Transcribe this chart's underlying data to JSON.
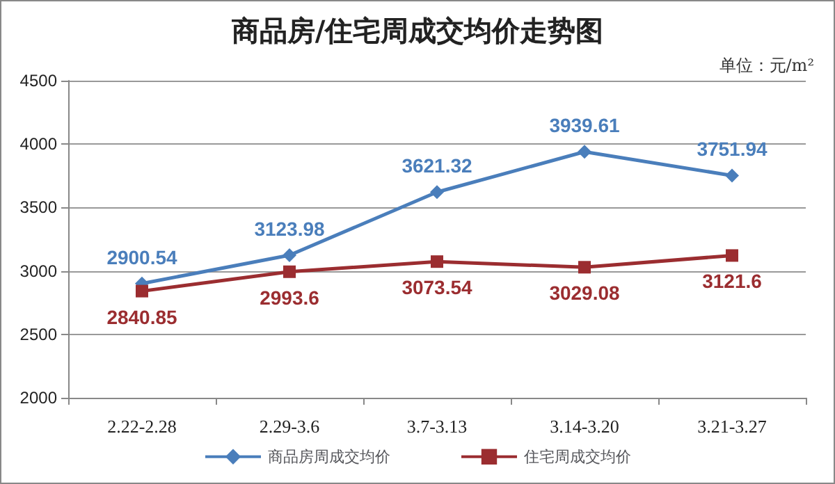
{
  "chart_data": {
    "type": "line",
    "title": "商品房/住宅周成交均价走势图",
    "annotations": [
      "单位：元/m²"
    ],
    "categories": [
      "2.22-2.28",
      "2.29-3.6",
      "3.7-3.13",
      "3.14-3.20",
      "3.21-3.27"
    ],
    "series": [
      {
        "name": "商品房周成交均价",
        "color": "#4a7ebb",
        "marker": "diamond",
        "values": [
          2900.54,
          3123.98,
          3621.32,
          3939.61,
          3751.94
        ]
      },
      {
        "name": "住宅周成交均价",
        "color": "#9b2d30",
        "marker": "square",
        "values": [
          2840.85,
          2993.6,
          3073.54,
          3029.08,
          3121.6
        ]
      }
    ],
    "ylim": [
      2000,
      4500
    ],
    "yticks": [
      2000,
      2500,
      3000,
      3500,
      4000,
      4500
    ],
    "grid": "y",
    "legend": "bottom",
    "data_labels": true
  }
}
